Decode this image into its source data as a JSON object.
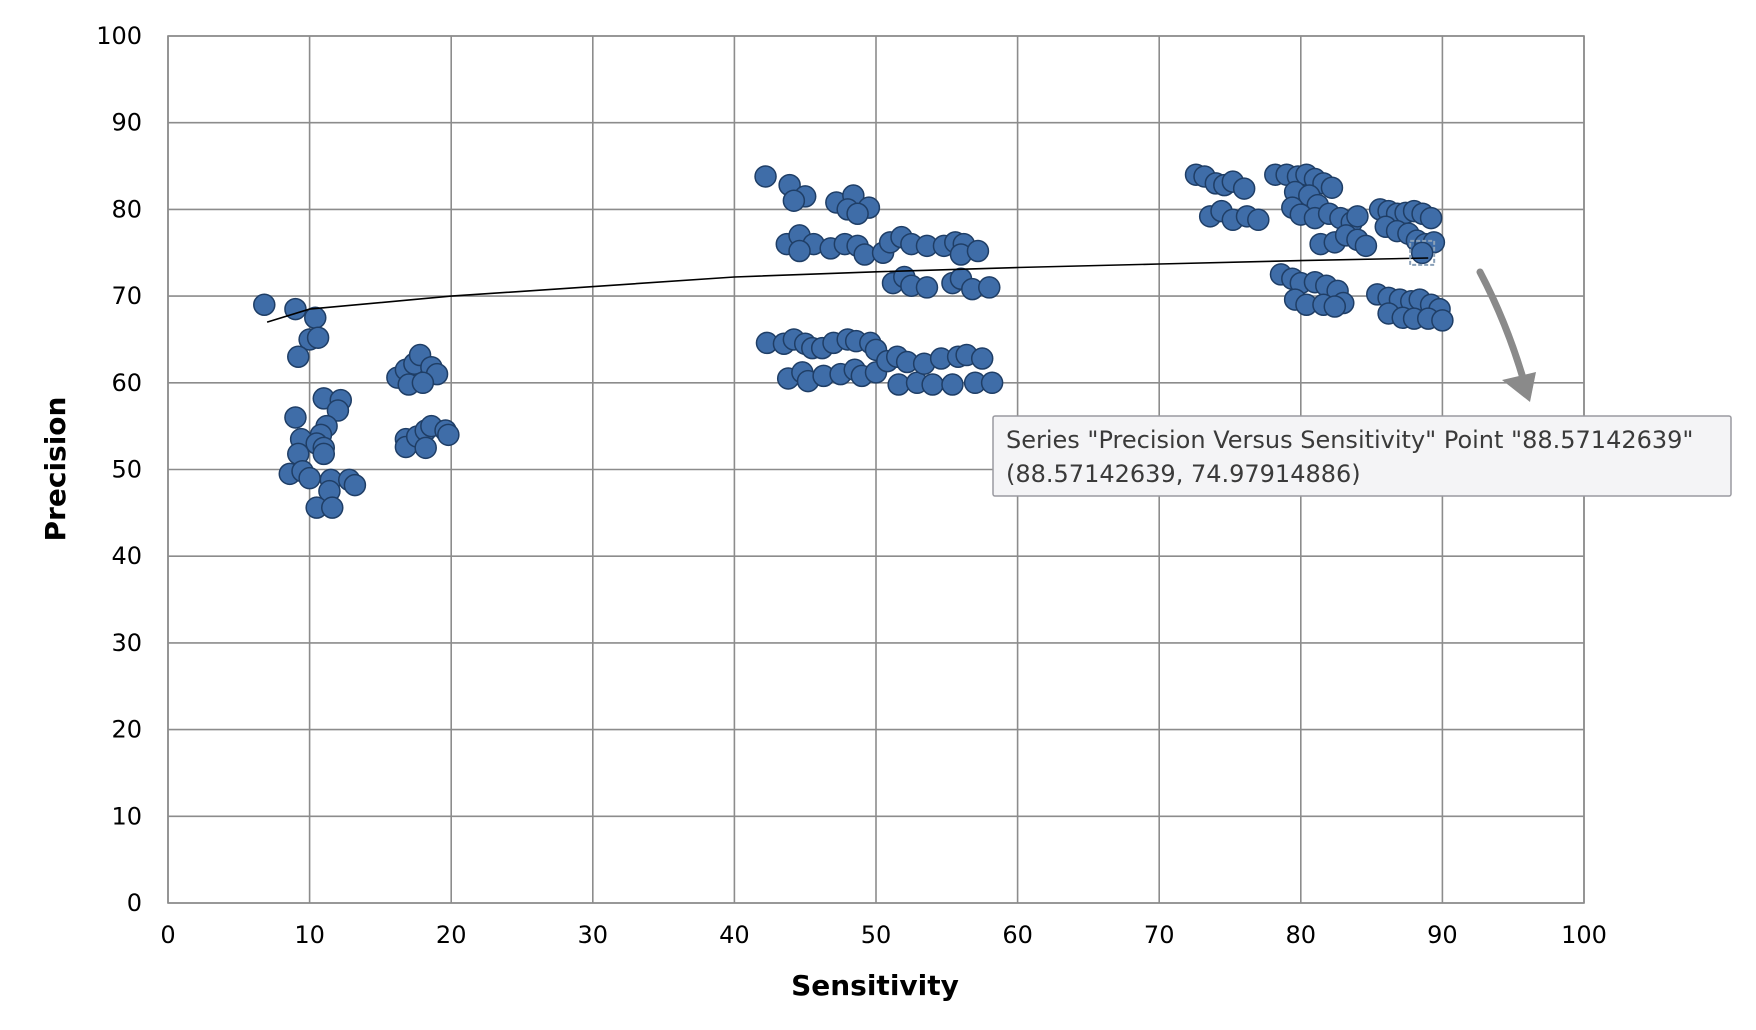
{
  "chart_data": {
    "type": "scatter",
    "xlabel": "Sensitivity",
    "ylabel": "Precision",
    "xlim": [
      0,
      100
    ],
    "ylim": [
      0,
      100
    ],
    "xticks": [
      "0",
      "10",
      "20",
      "30",
      "40",
      "50",
      "60",
      "70",
      "80",
      "90",
      "100"
    ],
    "yticks": [
      "0",
      "10",
      "20",
      "30",
      "40",
      "50",
      "60",
      "70",
      "80",
      "90",
      "100"
    ],
    "grid": true,
    "marker_color": "#3f6da8",
    "marker_edge_color": "#1f3e66",
    "trendline": {
      "type": "logarithmic",
      "color": "#000000",
      "points": [
        [
          7,
          67.0
        ],
        [
          10,
          68.5
        ],
        [
          20,
          70.0
        ],
        [
          40,
          72.2
        ],
        [
          50,
          72.8
        ],
        [
          60,
          73.3
        ],
        [
          70,
          73.7
        ],
        [
          80,
          74.1
        ],
        [
          89,
          74.4
        ]
      ]
    },
    "series": [
      {
        "points": [
          [
            6.8,
            69.0
          ],
          [
            9.0,
            68.5
          ],
          [
            10.4,
            67.5
          ],
          [
            10.0,
            65.0
          ],
          [
            10.6,
            65.2
          ],
          [
            9.2,
            63.0
          ],
          [
            9.0,
            56.0
          ],
          [
            11.0,
            58.2
          ],
          [
            12.2,
            58.0
          ],
          [
            12.0,
            56.8
          ],
          [
            11.2,
            55.0
          ],
          [
            10.8,
            54.0
          ],
          [
            9.4,
            53.5
          ],
          [
            10.5,
            53.0
          ],
          [
            11.0,
            52.5
          ],
          [
            9.2,
            51.8
          ],
          [
            11.0,
            51.8
          ],
          [
            8.6,
            49.5
          ],
          [
            9.5,
            49.8
          ],
          [
            10.0,
            49.0
          ],
          [
            11.5,
            48.8
          ],
          [
            12.8,
            48.8
          ],
          [
            13.2,
            48.2
          ],
          [
            11.4,
            47.5
          ],
          [
            10.5,
            45.6
          ],
          [
            11.6,
            45.6
          ],
          [
            16.2,
            60.6
          ],
          [
            16.8,
            61.5
          ],
          [
            17.4,
            62.2
          ],
          [
            17.8,
            63.2
          ],
          [
            18.6,
            61.8
          ],
          [
            19.0,
            61.0
          ],
          [
            17.0,
            59.8
          ],
          [
            18.0,
            60.0
          ],
          [
            16.8,
            53.5
          ],
          [
            16.8,
            52.6
          ],
          [
            17.6,
            53.8
          ],
          [
            18.2,
            54.5
          ],
          [
            18.6,
            55.0
          ],
          [
            19.6,
            54.5
          ],
          [
            18.2,
            52.5
          ],
          [
            19.8,
            54.0
          ],
          [
            42.2,
            83.8
          ],
          [
            43.9,
            82.8
          ],
          [
            45.0,
            81.5
          ],
          [
            44.2,
            81.0
          ],
          [
            47.2,
            80.8
          ],
          [
            48.4,
            81.6
          ],
          [
            48.0,
            80.0
          ],
          [
            49.5,
            80.2
          ],
          [
            48.7,
            79.5
          ],
          [
            43.7,
            76.0
          ],
          [
            44.6,
            77.0
          ],
          [
            45.6,
            76.0
          ],
          [
            44.6,
            75.2
          ],
          [
            46.8,
            75.5
          ],
          [
            47.8,
            76.0
          ],
          [
            48.7,
            75.8
          ],
          [
            49.2,
            74.8
          ],
          [
            50.5,
            75.0
          ],
          [
            51.0,
            76.2
          ],
          [
            51.8,
            76.8
          ],
          [
            52.5,
            76.0
          ],
          [
            53.6,
            75.8
          ],
          [
            54.8,
            75.8
          ],
          [
            55.6,
            76.2
          ],
          [
            56.2,
            76.0
          ],
          [
            56.0,
            74.8
          ],
          [
            57.2,
            75.2
          ],
          [
            51.2,
            71.5
          ],
          [
            52.0,
            72.2
          ],
          [
            52.5,
            71.2
          ],
          [
            53.6,
            71.0
          ],
          [
            55.4,
            71.5
          ],
          [
            56.0,
            72.0
          ],
          [
            56.8,
            70.8
          ],
          [
            58.0,
            71.0
          ],
          [
            42.3,
            64.6
          ],
          [
            43.5,
            64.5
          ],
          [
            44.2,
            65.0
          ],
          [
            45.0,
            64.5
          ],
          [
            45.5,
            64.0
          ],
          [
            46.2,
            64.0
          ],
          [
            47.0,
            64.6
          ],
          [
            48.0,
            65.0
          ],
          [
            48.6,
            64.8
          ],
          [
            49.6,
            64.6
          ],
          [
            50.0,
            63.8
          ],
          [
            43.8,
            60.5
          ],
          [
            44.8,
            61.2
          ],
          [
            45.2,
            60.2
          ],
          [
            46.3,
            60.8
          ],
          [
            47.5,
            61.0
          ],
          [
            48.5,
            61.5
          ],
          [
            49.0,
            60.8
          ],
          [
            50.0,
            61.2
          ],
          [
            50.8,
            62.5
          ],
          [
            51.5,
            63.0
          ],
          [
            51.6,
            59.8
          ],
          [
            52.2,
            62.4
          ],
          [
            52.9,
            60.0
          ],
          [
            53.4,
            62.2
          ],
          [
            54.0,
            59.8
          ],
          [
            54.6,
            62.8
          ],
          [
            55.4,
            59.8
          ],
          [
            55.8,
            63.0
          ],
          [
            56.4,
            63.2
          ],
          [
            57.0,
            60.0
          ],
          [
            57.5,
            62.8
          ],
          [
            58.2,
            60.0
          ],
          [
            72.6,
            84.0
          ],
          [
            73.2,
            83.8
          ],
          [
            74.0,
            83.0
          ],
          [
            74.6,
            82.8
          ],
          [
            75.2,
            83.2
          ],
          [
            76.0,
            82.4
          ],
          [
            73.6,
            79.2
          ],
          [
            74.4,
            79.8
          ],
          [
            75.2,
            78.8
          ],
          [
            76.2,
            79.2
          ],
          [
            77.0,
            78.8
          ],
          [
            78.2,
            84.0
          ],
          [
            79.0,
            84.0
          ],
          [
            79.8,
            83.8
          ],
          [
            80.4,
            84.0
          ],
          [
            81.0,
            83.5
          ],
          [
            81.6,
            83.0
          ],
          [
            82.2,
            82.5
          ],
          [
            79.6,
            82.0
          ],
          [
            80.6,
            81.6
          ],
          [
            81.2,
            80.5
          ],
          [
            79.4,
            80.2
          ],
          [
            80.0,
            79.4
          ],
          [
            81.0,
            79.0
          ],
          [
            82.0,
            79.5
          ],
          [
            82.8,
            79.0
          ],
          [
            83.6,
            78.5
          ],
          [
            84.0,
            79.2
          ],
          [
            81.4,
            76.0
          ],
          [
            82.4,
            76.2
          ],
          [
            83.2,
            77.0
          ],
          [
            84.0,
            76.5
          ],
          [
            84.6,
            75.8
          ],
          [
            85.6,
            80.0
          ],
          [
            86.2,
            79.8
          ],
          [
            86.8,
            79.5
          ],
          [
            87.4,
            79.6
          ],
          [
            88.0,
            79.8
          ],
          [
            88.6,
            79.5
          ],
          [
            89.2,
            79.0
          ],
          [
            86.0,
            78.0
          ],
          [
            86.8,
            77.5
          ],
          [
            87.6,
            77.2
          ],
          [
            88.2,
            76.4
          ],
          [
            88.8,
            76.0
          ],
          [
            89.4,
            76.2
          ],
          [
            88.57142639,
            74.97914886
          ],
          [
            78.6,
            72.5
          ],
          [
            79.4,
            72.0
          ],
          [
            80.0,
            71.5
          ],
          [
            81.0,
            71.6
          ],
          [
            81.8,
            71.2
          ],
          [
            82.6,
            70.6
          ],
          [
            83.0,
            69.2
          ],
          [
            79.6,
            69.6
          ],
          [
            80.4,
            69.0
          ],
          [
            81.6,
            69.0
          ],
          [
            82.4,
            68.8
          ],
          [
            85.4,
            70.2
          ],
          [
            86.2,
            69.8
          ],
          [
            87.0,
            69.6
          ],
          [
            87.8,
            69.4
          ],
          [
            88.4,
            69.6
          ],
          [
            89.2,
            69.0
          ],
          [
            89.8,
            68.5
          ],
          [
            86.2,
            68.0
          ],
          [
            87.2,
            67.5
          ],
          [
            88.0,
            67.4
          ],
          [
            89.0,
            67.4
          ],
          [
            90.0,
            67.2
          ]
        ]
      }
    ],
    "tooltip": {
      "line1": "Series \"Precision Versus Sensitivity\" Point \"88.57142639\"",
      "line2": "(88.57142639, 74.97914886)",
      "point": [
        88.57142639,
        74.97914886
      ]
    }
  }
}
